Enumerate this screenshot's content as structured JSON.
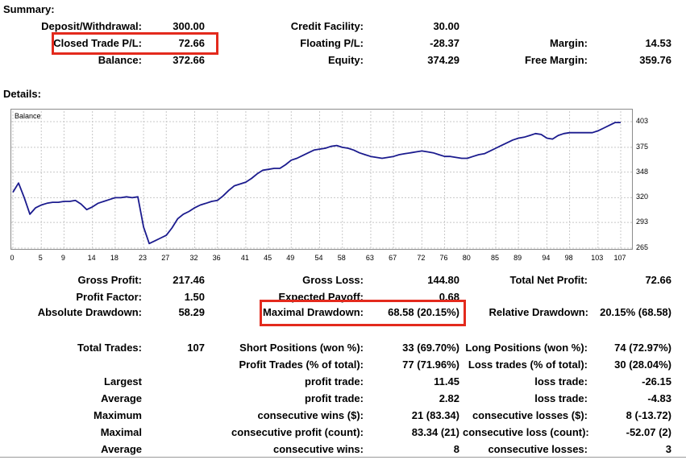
{
  "summary": {
    "title": "Summary:",
    "deposit_label": "Deposit/Withdrawal:",
    "deposit_value": "300.00",
    "credit_label": "Credit Facility:",
    "credit_value": "30.00",
    "closed_label": "Closed Trade P/L:",
    "closed_value": "72.66",
    "floating_label": "Floating P/L:",
    "floating_value": "-28.37",
    "margin_label": "Margin:",
    "margin_value": "14.53",
    "balance_label": "Balance:",
    "balance_value": "372.66",
    "equity_label": "Equity:",
    "equity_value": "374.29",
    "free_margin_label": "Free Margin:",
    "free_margin_value": "359.76"
  },
  "details": {
    "title": "Details:"
  },
  "chart_data": {
    "type": "line",
    "series": [
      {
        "name": "Balance",
        "x": [
          0,
          1,
          2,
          3,
          4,
          5,
          6,
          7,
          8,
          9,
          10,
          11,
          12,
          13,
          14,
          15,
          16,
          17,
          18,
          19,
          20,
          21,
          22,
          23,
          24,
          25,
          26,
          27,
          28,
          29,
          30,
          31,
          32,
          33,
          34,
          35,
          36,
          37,
          38,
          39,
          40,
          41,
          42,
          43,
          44,
          45,
          46,
          47,
          48,
          49,
          50,
          51,
          52,
          53,
          54,
          55,
          56,
          57,
          58,
          59,
          60,
          61,
          62,
          63,
          64,
          65,
          66,
          67,
          68,
          69,
          70,
          71,
          72,
          73,
          74,
          75,
          76,
          77,
          78,
          79,
          80,
          81,
          82,
          83,
          84,
          85,
          86,
          87,
          88,
          89,
          90,
          91,
          92,
          93,
          94,
          95,
          96,
          97,
          98,
          99,
          100,
          101,
          102,
          103,
          104,
          105,
          106,
          107
        ],
        "values": [
          326,
          336,
          320,
          302,
          309,
          312,
          314,
          315,
          315,
          316,
          316,
          317,
          313,
          307,
          310,
          314,
          316,
          318,
          320,
          320,
          321,
          320,
          321,
          288,
          270,
          273,
          276,
          279,
          287,
          297,
          302,
          305,
          309,
          312,
          314,
          316,
          317,
          322,
          328,
          333,
          335,
          337,
          341,
          346,
          350,
          351,
          352,
          352,
          356,
          361,
          363,
          366,
          369,
          372,
          373,
          374,
          376,
          377,
          375,
          374,
          372,
          369,
          367,
          365,
          364,
          363,
          364,
          365,
          367,
          368,
          369,
          370,
          371,
          370,
          369,
          367,
          365,
          365,
          364,
          363,
          363,
          365,
          367,
          368,
          371,
          374,
          377,
          380,
          383,
          385,
          386,
          388,
          390,
          389,
          385,
          384,
          388,
          390,
          391,
          391,
          391,
          391,
          391,
          393,
          396,
          399,
          402,
          402
        ],
        "color": "#1b1b8e"
      }
    ],
    "x_ticks": [
      "0",
      "5",
      "9",
      "14",
      "18",
      "23",
      "27",
      "32",
      "36",
      "41",
      "45",
      "49",
      "54",
      "58",
      "63",
      "67",
      "72",
      "76",
      "80",
      "85",
      "89",
      "94",
      "98",
      "103",
      "107"
    ],
    "y_ticks": [
      "403",
      "375",
      "348",
      "320",
      "293",
      "265"
    ],
    "xlim": [
      0,
      107
    ],
    "ylim": [
      265,
      403
    ],
    "grid": true,
    "grid_color": "#c8c8c8"
  },
  "stats": {
    "gross_profit_label": "Gross Profit:",
    "gross_profit_value": "217.46",
    "gross_loss_label": "Gross Loss:",
    "gross_loss_value": "144.80",
    "net_profit_label": "Total Net Profit:",
    "net_profit_value": "72.66",
    "profit_factor_label": "Profit Factor:",
    "profit_factor_value": "1.50",
    "expected_payoff_label": "Expected Payoff:",
    "expected_payoff_value": "0.68",
    "abs_dd_label": "Absolute Drawdown:",
    "abs_dd_value": "58.29",
    "max_dd_label": "Maximal Drawdown:",
    "max_dd_value": "68.58 (20.15%)",
    "rel_dd_label": "Relative Drawdown:",
    "rel_dd_value": "20.15% (68.58)",
    "total_trades_label": "Total Trades:",
    "total_trades_value": "107",
    "short_label": "Short Positions (won %):",
    "short_value": "33 (69.70%)",
    "long_label": "Long Positions (won %):",
    "long_value": "74 (72.97%)",
    "profit_trades_label": "Profit Trades (% of total):",
    "profit_trades_value": "77 (71.96%)",
    "loss_trades_label": "Loss trades (% of total):",
    "loss_trades_value": "30 (28.04%)",
    "largest_label": "Largest",
    "largest_profit_label": "profit trade:",
    "largest_profit_value": "11.45",
    "largest_loss_label": "loss trade:",
    "largest_loss_value": "-26.15",
    "average_label": "Average",
    "average_profit_label": "profit trade:",
    "average_profit_value": "2.82",
    "average_loss_label": "loss trade:",
    "average_loss_value": "-4.83",
    "maximum_label": "Maximum",
    "max_cons_wins_label": "consecutive wins ($):",
    "max_cons_wins_value": "21 (83.34)",
    "max_cons_losses_label": "consecutive losses ($):",
    "max_cons_losses_value": "8 (-13.72)",
    "maximal_label": "Maximal",
    "maximal_profit_label": "consecutive profit (count):",
    "maximal_profit_value": "83.34 (21)",
    "maximal_loss_label": "consecutive loss (count):",
    "maximal_loss_value": "-52.07 (2)",
    "average2_label": "Average",
    "avg_cons_wins_label": "consecutive wins:",
    "avg_cons_wins_value": "8",
    "avg_cons_losses_label": "consecutive losses:",
    "avg_cons_losses_value": "3"
  },
  "highlight_color": "#e32a1d"
}
